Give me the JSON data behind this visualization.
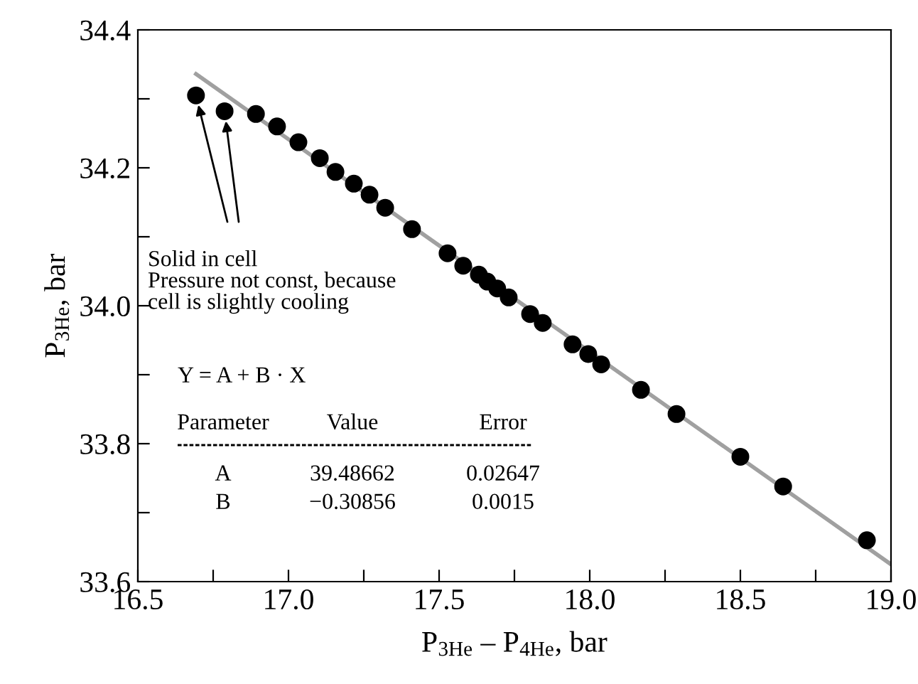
{
  "chart_data": {
    "type": "scatter",
    "xlabel": "P$_{3He}$ – P$_{4He}$, bar",
    "ylabel": "P$_{3He}$, bar",
    "xlim": [
      16.5,
      19.0
    ],
    "xticks": [
      {
        "value": 16.5,
        "label": "16.5"
      },
      {
        "value": 16.75,
        "label": null
      },
      {
        "value": 17.0,
        "label": "17.0"
      },
      {
        "value": 17.25,
        "label": null
      },
      {
        "value": 17.5,
        "label": "17.5"
      },
      {
        "value": 17.75,
        "label": null
      },
      {
        "value": 18.0,
        "label": "18.0"
      },
      {
        "value": 18.25,
        "label": null
      },
      {
        "value": 18.5,
        "label": "18.5"
      },
      {
        "value": 18.75,
        "label": null
      },
      {
        "value": 19.0,
        "label": "19.0"
      }
    ],
    "ylim": [
      33.6,
      34.4
    ],
    "yticks": [
      {
        "value": 33.6,
        "label": "33.6"
      },
      {
        "value": 33.7,
        "label": null
      },
      {
        "value": 33.8,
        "label": "33.8"
      },
      {
        "value": 33.9,
        "label": null
      },
      {
        "value": 34.0,
        "label": "34.0"
      },
      {
        "value": 34.1,
        "label": null
      },
      {
        "value": 34.2,
        "label": "34.2"
      },
      {
        "value": 34.3,
        "label": null
      },
      {
        "value": 34.4,
        "label": "34.4"
      }
    ],
    "grid": false,
    "series": [
      {
        "marker": "circle",
        "color": "#000000",
        "x": [
          16.693,
          16.788,
          16.892,
          16.962,
          17.033,
          17.104,
          17.156,
          17.217,
          17.269,
          17.321,
          17.41,
          17.528,
          17.58,
          17.632,
          17.66,
          17.693,
          17.731,
          17.802,
          17.844,
          17.943,
          17.995,
          18.038,
          18.17,
          18.288,
          18.5,
          18.642,
          18.92
        ],
        "values": [
          34.305,
          34.282,
          34.278,
          34.26,
          34.237,
          34.214,
          34.194,
          34.177,
          34.161,
          34.142,
          34.111,
          34.076,
          34.058,
          34.045,
          34.035,
          34.025,
          34.012,
          33.988,
          33.975,
          33.944,
          33.93,
          33.915,
          33.878,
          33.843,
          33.781,
          33.738,
          33.66
        ]
      },
      {
        "type": "line",
        "marker": "none",
        "color": "#a0a0a0",
        "x": [
          16.693,
          19.0
        ],
        "values": [
          34.336,
          33.625
        ]
      }
    ],
    "annotations": [
      {
        "text": "Solid in cell\nPressure not const, because\ncell is slightly cooling",
        "x": 16.693,
        "y": 34.305
      },
      "Y = A + B · X",
      "Parameter",
      "Value",
      "Error",
      "A",
      "39.48662",
      "0.02647",
      "B",
      "−0.30856",
      "0.0015"
    ]
  }
}
